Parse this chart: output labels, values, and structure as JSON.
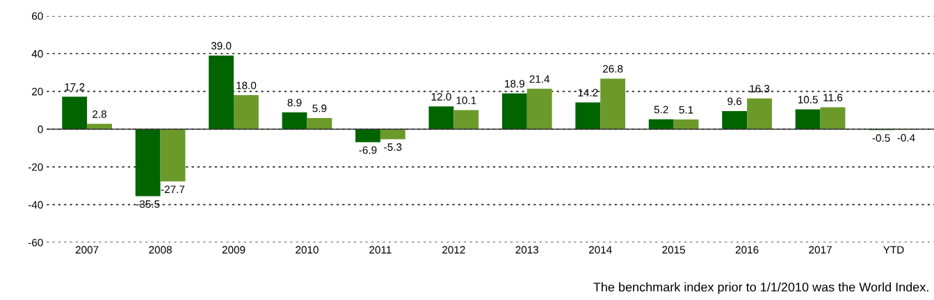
{
  "chart_data": {
    "type": "bar",
    "categories": [
      "2007",
      "2008",
      "2009",
      "2010",
      "2011",
      "2012",
      "2013",
      "2014",
      "2015",
      "2016",
      "2017",
      "YTD"
    ],
    "series": [
      {
        "color": "#006400",
        "values": [
          17.2,
          -35.5,
          39.0,
          8.9,
          -6.9,
          12.0,
          18.9,
          14.2,
          5.2,
          9.6,
          10.5,
          -0.5
        ],
        "value_labels": [
          "17.2",
          "-35.5",
          "39.0",
          "8.9",
          "-6.9",
          "12.0",
          "18.9",
          "14.2",
          "5.2",
          "9.6",
          "10.5",
          "-0.5"
        ]
      },
      {
        "color": "#6b9a2a",
        "values": [
          2.8,
          -27.7,
          18.0,
          5.9,
          -5.3,
          10.1,
          21.4,
          26.8,
          5.1,
          16.3,
          11.6,
          -0.4
        ],
        "value_labels": [
          "2.8",
          "-27.7",
          "18.0",
          "5.9",
          "-5.3",
          "10.1",
          "21.4",
          "26.8",
          "5.1",
          "16.3",
          "11.6",
          "-0.4"
        ]
      }
    ],
    "ylim": [
      -60,
      60
    ],
    "yticks": [
      -60,
      -40,
      -20,
      0,
      20,
      40,
      60
    ],
    "grid": "y",
    "legend": false,
    "annotations": [
      "The benchmark index prior to 1/1/2010 was the World Index."
    ]
  }
}
